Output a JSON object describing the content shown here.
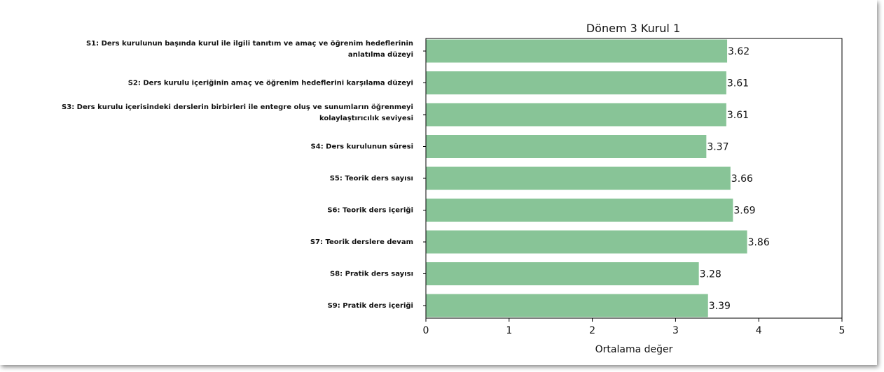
{
  "chart_data": {
    "type": "bar",
    "orientation": "horizontal",
    "title": "Dönem 3 Kurul 1",
    "xlabel": "Ortalama değer",
    "ylabel": "",
    "xlim": [
      0,
      5
    ],
    "xticks": [
      "0",
      "1",
      "2",
      "3",
      "4",
      "5"
    ],
    "bar_color": "#88c497",
    "grid": false,
    "categories": [
      [
        "S1: Ders kurulunun başında kurul ile ilgili tanıtım ve amaç ve öğrenim hedeflerinin",
        "anlatılma düzeyi"
      ],
      [
        "S2: Ders kurulu içeriğinin amaç ve öğrenim hedeflerini karşılama düzeyi"
      ],
      [
        "S3: Ders kurulu içerisindeki derslerin birbirleri ile entegre oluş ve sunumların öğrenmeyi",
        "kolaylaştırıcılık seviyesi"
      ],
      [
        "S4: Ders kurulunun süresi"
      ],
      [
        "S5: Teorik ders sayısı"
      ],
      [
        "S6: Teorik ders içeriği"
      ],
      [
        "S7: Teorik derslere devam"
      ],
      [
        "S8: Pratik ders sayısı"
      ],
      [
        "S9: Pratik ders içeriği"
      ]
    ],
    "values": [
      3.62,
      3.61,
      3.61,
      3.37,
      3.66,
      3.69,
      3.86,
      3.28,
      3.39
    ],
    "value_labels": [
      "3.62",
      "3.61",
      "3.61",
      "3.37",
      "3.66",
      "3.69",
      "3.86",
      "3.28",
      "3.39"
    ]
  }
}
